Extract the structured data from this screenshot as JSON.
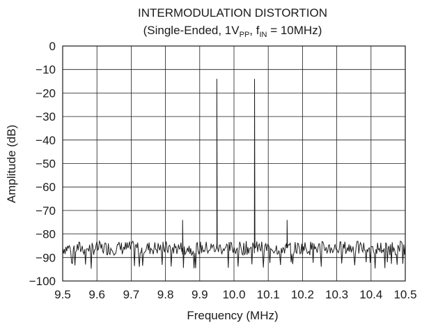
{
  "chart_data": {
    "type": "line",
    "title": "INTERMODULATION DISTORTION",
    "subtitle": {
      "prefix": "(Single-Ended, 1V",
      "pp_sub": "PP",
      "mid": ", f",
      "in_sub": "IN",
      "suffix": " = 10MHz)"
    },
    "xlabel": "Frequency (MHz)",
    "ylabel": "Amplitude (dB)",
    "xlim": [
      9.5,
      10.5
    ],
    "ylim": [
      -100,
      0
    ],
    "xticks": [
      "9.5",
      "9.6",
      "9.7",
      "9.8",
      "9.9",
      "10.0",
      "10.1",
      "10.2",
      "10.3",
      "10.4",
      "10.5"
    ],
    "yticks": [
      "0",
      "−10",
      "−20",
      "−30",
      "−40",
      "−50",
      "−60",
      "−70",
      "−80",
      "−90",
      "−100"
    ],
    "grid": true,
    "noise_floor": {
      "min": -91,
      "max": -82
    },
    "peaks": [
      {
        "x": 9.85,
        "y": -74
      },
      {
        "x": 9.95,
        "y": -14
      },
      {
        "x": 10.06,
        "y": -14
      },
      {
        "x": 10.155,
        "y": -74
      }
    ],
    "colors": {
      "line": "#1a1a1a",
      "grid": "#1a1a1a"
    }
  }
}
